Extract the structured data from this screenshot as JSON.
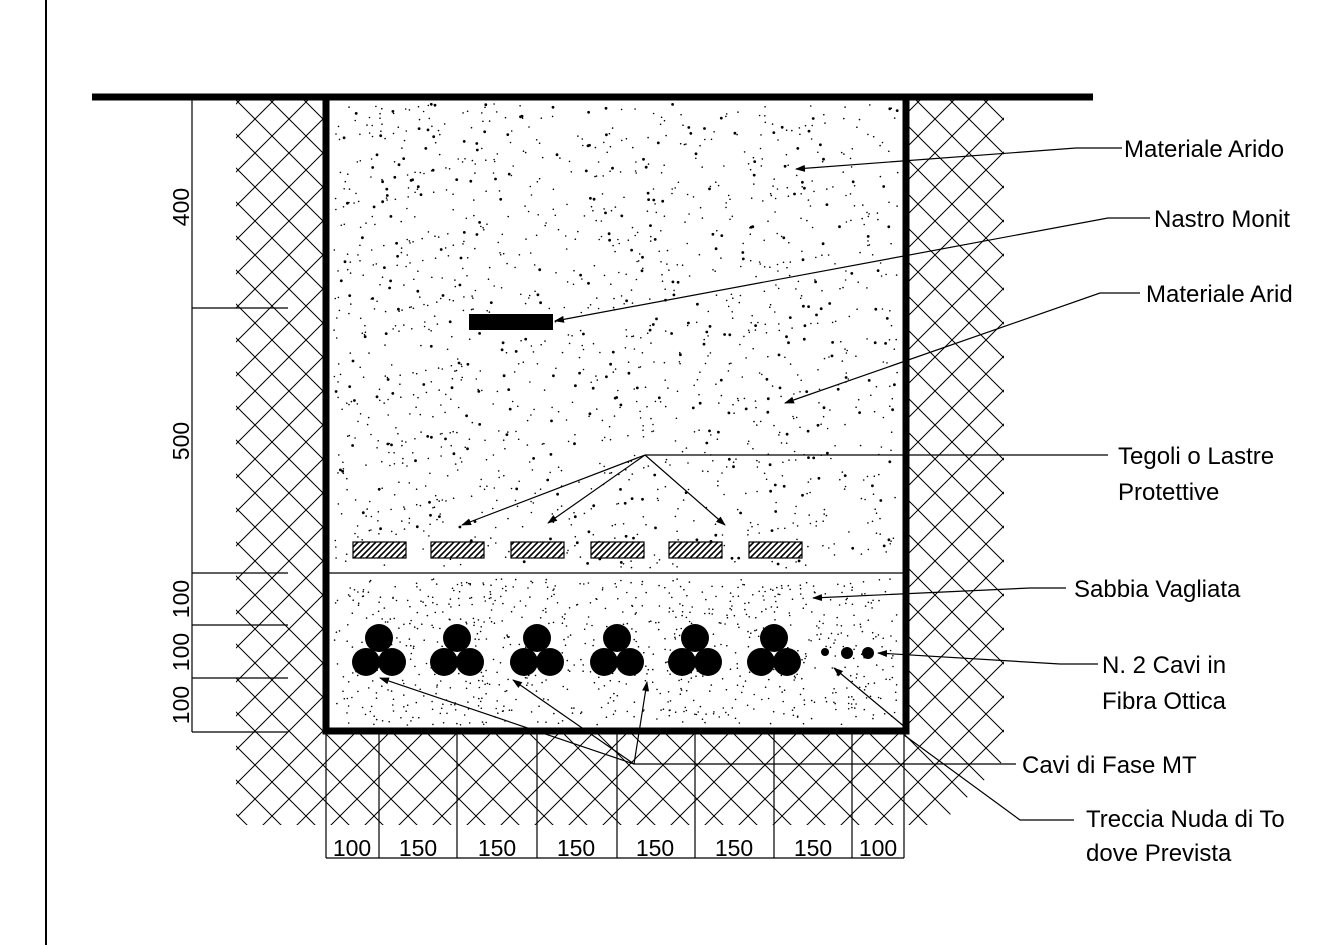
{
  "labels": {
    "materiale_arido_1": "Materiale Arido",
    "nastro_monitore": "Nastro Monit",
    "materiale_arido_2": "Materiale Arid",
    "tegoli_line1": "Tegoli o Lastre",
    "tegoli_line2": "Protettive",
    "sabbia_vagliata": "Sabbia Vagliata",
    "fibra_line1": "N. 2 Cavi in",
    "fibra_line2": "Fibra Ottica",
    "cavi_fase": "Cavi di Fase MT",
    "treccia_line1": "Treccia Nuda di To",
    "treccia_line2": "dove Prevista"
  },
  "vertical_dimensions": [
    "400",
    "500",
    "100",
    "100",
    "100"
  ],
  "horizontal_dimensions": [
    "100",
    "150",
    "150",
    "150",
    "150",
    "150",
    "150",
    "100"
  ],
  "cable_trefoils": 6,
  "protective_tiles": 6,
  "fiber_cables": 2,
  "colors": {
    "line": "#000000",
    "background": "#ffffff"
  }
}
